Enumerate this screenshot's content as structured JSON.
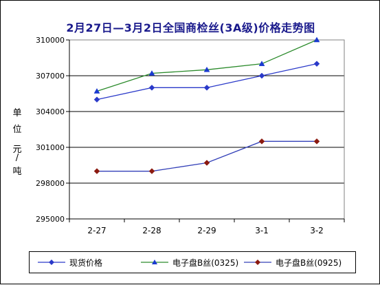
{
  "chart_data": {
    "type": "line",
    "title": "2月27日—3月2日全国商检丝(3A级)价格走势图",
    "ylabel": "单位 元/吨",
    "categories": [
      "2-27",
      "2-28",
      "2-29",
      "3-1",
      "3-2"
    ],
    "yticks": [
      295000,
      298000,
      301000,
      304000,
      307000,
      310000
    ],
    "ylim": [
      295000,
      310000
    ],
    "grid": "horizontal",
    "legend_position": "bottom",
    "series": [
      {
        "name": "现货价格",
        "marker": "diamond",
        "color": "#2a39c9",
        "values": [
          305000,
          306000,
          306000,
          307000,
          308000
        ]
      },
      {
        "name": "电子盘B丝(0325)",
        "marker": "triangle",
        "color": "#2a8a2a",
        "marker_color": "#1a3ad0",
        "values": [
          305700,
          307200,
          307500,
          308000,
          310000
        ]
      },
      {
        "name": "电子盘B丝(0925)",
        "marker": "diamond",
        "color": "#3340b8",
        "marker_color": "#8b1a10",
        "values": [
          299000,
          299000,
          299700,
          301500,
          301500
        ]
      }
    ]
  },
  "ylabel_chars": [
    "单",
    "位",
    "元",
    "/",
    "吨"
  ]
}
